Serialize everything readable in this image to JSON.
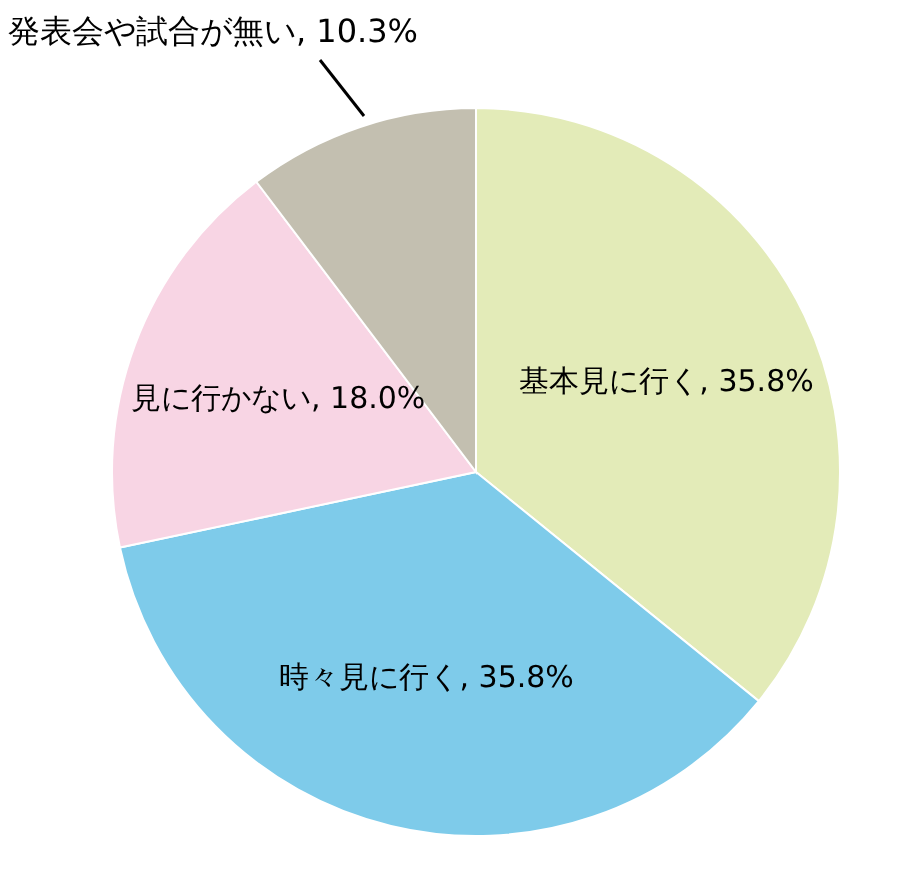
{
  "chart_data": {
    "type": "pie",
    "categories": [
      "基本見に行く",
      "時々見に行く",
      "見に行かない",
      "発表会や試合が無い"
    ],
    "values": [
      35.8,
      35.8,
      18.0,
      10.3
    ],
    "value_labels": [
      "35.8%",
      "35.8%",
      "18.0%",
      "10.3%"
    ],
    "colors": [
      "#e3ebb8",
      "#7ecbea",
      "#f8d5e4",
      "#c3bfb0"
    ]
  }
}
